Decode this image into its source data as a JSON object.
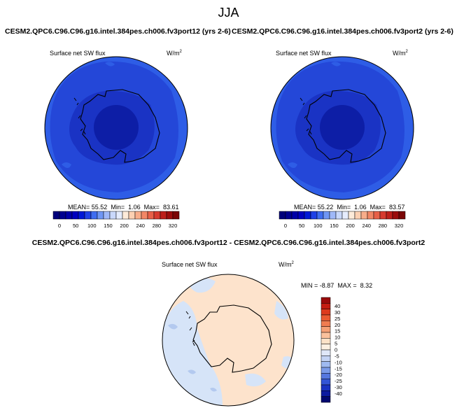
{
  "season": "JJA",
  "panels": [
    {
      "title": "CESM2.QPC6.C96.C96.g16.intel.384pes.ch006.fv3port12 (yrs 2-6)",
      "variable": "Surface net SW flux",
      "units_base": "W/m",
      "units_exp": "2",
      "stats": {
        "mean_label": "MEAN=",
        "mean": "55.52",
        "min_label": "Min=",
        "min": "1.06",
        "max_label": "Max=",
        "max": "83.61"
      },
      "colorbar": {
        "labels": [
          "0",
          "50",
          "100",
          "150",
          "200",
          "240",
          "280",
          "320"
        ],
        "colors": [
          "#00007a",
          "#00008f",
          "#0000a8",
          "#0000c0",
          "#0018d6",
          "#1f41e6",
          "#3f6df0",
          "#6f96f4",
          "#9fb8f8",
          "#c9d8fb",
          "#e5ecfd",
          "#fdebd9",
          "#fcd0b2",
          "#f8ad8a",
          "#f28766",
          "#e76048",
          "#d63a2e",
          "#bd1f1a",
          "#9b0d0d",
          "#7a0606"
        ]
      }
    },
    {
      "title": "CESM2.QPC6.C96.C96.g16.intel.384pes.ch006.fv3port2 (yrs 2-6)",
      "variable": "Surface net SW flux",
      "units_base": "W/m",
      "units_exp": "2",
      "stats": {
        "mean_label": "MEAN=",
        "mean": "55.22",
        "min_label": "Min=",
        "min": "1.06",
        "max_label": "Max=",
        "max": "83.57"
      },
      "colorbar": {
        "labels": [
          "0",
          "50",
          "100",
          "150",
          "200",
          "240",
          "280",
          "320"
        ],
        "colors": [
          "#00007a",
          "#00008f",
          "#0000a8",
          "#0000c0",
          "#0018d6",
          "#1f41e6",
          "#3f6df0",
          "#6f96f4",
          "#9fb8f8",
          "#c9d8fb",
          "#e5ecfd",
          "#fdebd9",
          "#fcd0b2",
          "#f8ad8a",
          "#f28766",
          "#e76048",
          "#d63a2e",
          "#bd1f1a",
          "#9b0d0d",
          "#7a0606"
        ]
      }
    }
  ],
  "diff": {
    "title": "CESM2.QPC6.C96.C96.g16.intel.384pes.ch006.fv3port12 - CESM2.QPC6.C96.C96.g16.intel.384pes.ch006.fv3port2",
    "variable": "Surface net SW flux",
    "units_base": "W/m",
    "units_exp": "2",
    "stats": {
      "min_label": "MIN =",
      "min": "-8.87",
      "max_label": "MAX =",
      "max": "8.32"
    },
    "colorbar": {
      "labels": [
        "40",
        "30",
        "25",
        "20",
        "15",
        "10",
        "5",
        "0",
        "-5",
        "-10",
        "-15",
        "-20",
        "-25",
        "-30",
        "-40"
      ],
      "colors": [
        "#9a0b0b",
        "#c41d12",
        "#dd3a1e",
        "#ea5a32",
        "#f07c50",
        "#f5a075",
        "#fac19c",
        "#fde2c8",
        "#fdf0e2",
        "#dfe7f8",
        "#c3d3f4",
        "#9fbaf0",
        "#7a9ae8",
        "#5577df",
        "#3355d6",
        "#1a33c2",
        "#0c1aa0",
        "#020870"
      ]
    }
  },
  "map_colors": {
    "ocean_outer": "#2e5de6",
    "ocean_inner": "#2447d8",
    "ice_mid": "#1a33c4",
    "pole": "#0d1ea6",
    "diff_base": "#fde3cc",
    "diff_blue": "#d6e4f8",
    "diff_blue_dark": "#b3c9ef"
  }
}
